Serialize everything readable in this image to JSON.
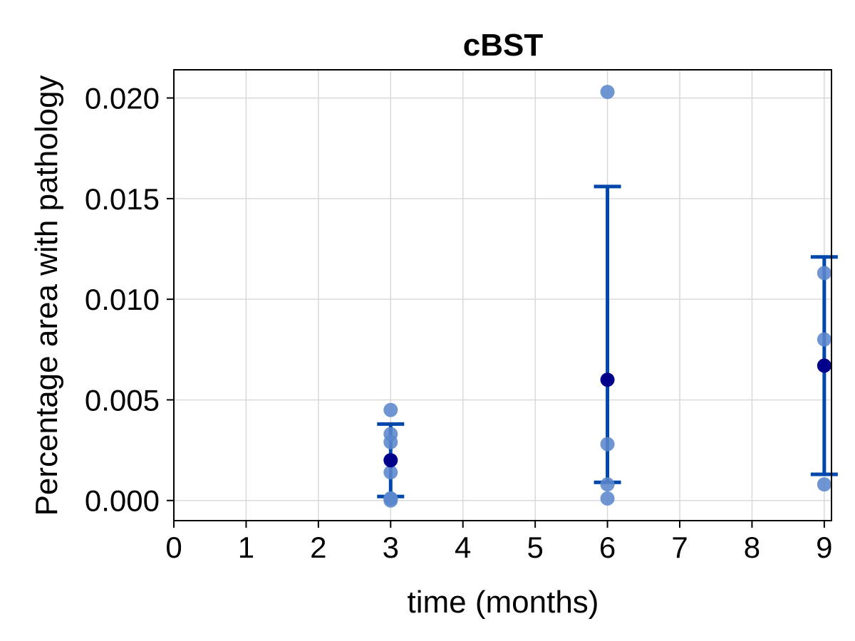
{
  "chart_data": {
    "type": "scatter",
    "title": "cBST",
    "xlabel": "time (months)",
    "ylabel": "Percentage area with pathology",
    "xlim": [
      0,
      9.1
    ],
    "ylim": [
      -0.001,
      0.0214
    ],
    "x_ticks": [
      0,
      1,
      2,
      3,
      4,
      5,
      6,
      7,
      8,
      9
    ],
    "x_tick_labels": [
      "0",
      "1",
      "2",
      "3",
      "4",
      "5",
      "6",
      "7",
      "8",
      "9"
    ],
    "y_ticks": [
      0.0,
      0.005,
      0.01,
      0.015,
      0.02
    ],
    "y_tick_labels": [
      "0.000",
      "0.005",
      "0.010",
      "0.015",
      "0.020"
    ],
    "grid": true,
    "colors": {
      "points": "#5b87cc",
      "mean": "#00008b",
      "error_bar": "#0047ab",
      "grid": "#d9d9d9"
    },
    "series": [
      {
        "x": [
          3,
          3,
          3,
          3,
          3,
          3,
          3,
          6,
          6,
          6,
          6,
          9,
          9,
          9
        ],
        "y": [
          0.0045,
          0.0033,
          0.0029,
          0.0014,
          0.0001,
          0.0,
          0.0001,
          0.0203,
          0.0028,
          0.0008,
          0.0001,
          0.0113,
          0.008,
          0.0008
        ]
      }
    ],
    "means": {
      "x": [
        3,
        6,
        9
      ],
      "y": [
        0.002,
        0.006,
        0.0067
      ]
    },
    "error_bars": [
      {
        "x": 3,
        "low": 0.0002,
        "high": 0.0038
      },
      {
        "x": 6,
        "low": 0.0009,
        "high": 0.0156
      },
      {
        "x": 9,
        "low": 0.0013,
        "high": 0.0121
      }
    ]
  }
}
